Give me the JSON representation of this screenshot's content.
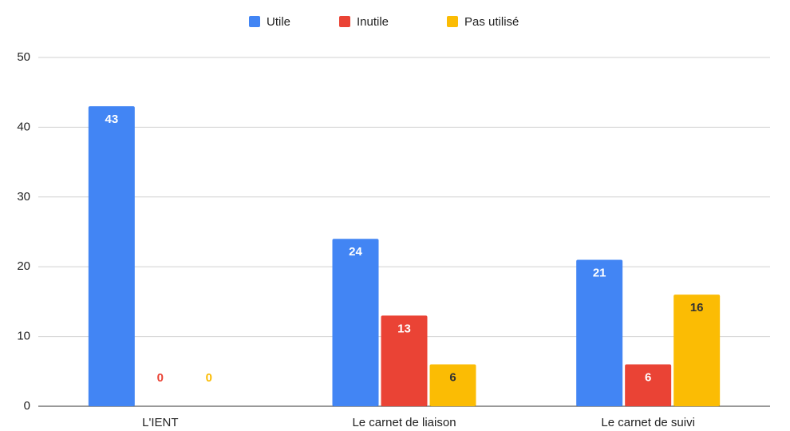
{
  "chart_data": {
    "type": "bar",
    "categories": [
      "L'IENT",
      "Le carnet de liaison",
      "Le carnet de suivi"
    ],
    "series": [
      {
        "name": "Utile",
        "color": "#4285f4",
        "values": [
          43,
          24,
          21
        ]
      },
      {
        "name": "Inutile",
        "color": "#ea4335",
        "values": [
          0,
          13,
          6
        ]
      },
      {
        "name": "Pas utilisé",
        "color": "#fbbc04",
        "values": [
          0,
          6,
          16
        ]
      }
    ],
    "ylim": [
      0,
      50
    ],
    "yticks": [
      0,
      10,
      20,
      30,
      40,
      50
    ],
    "grid": true,
    "legend": "top",
    "data_labels": true
  }
}
